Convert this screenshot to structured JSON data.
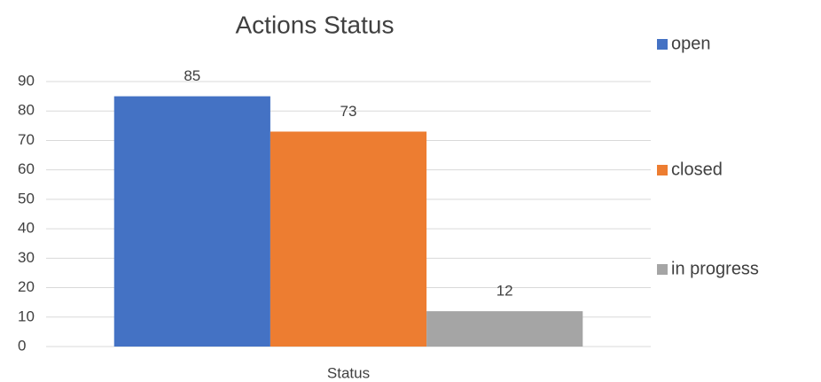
{
  "chart_data": {
    "type": "bar",
    "title": "Actions Status",
    "categories": [
      "Status"
    ],
    "series": [
      {
        "name": "open",
        "color": "#4472c4",
        "values": [
          85
        ]
      },
      {
        "name": "closed",
        "color": "#ed7d31",
        "values": [
          73
        ]
      },
      {
        "name": "in progress",
        "color": "#a5a5a5",
        "values": [
          12
        ]
      }
    ],
    "ylim": [
      0,
      90
    ],
    "yticks": [
      0,
      10,
      20,
      30,
      40,
      50,
      60,
      70,
      80,
      90
    ],
    "grid": true,
    "legend": "right"
  }
}
